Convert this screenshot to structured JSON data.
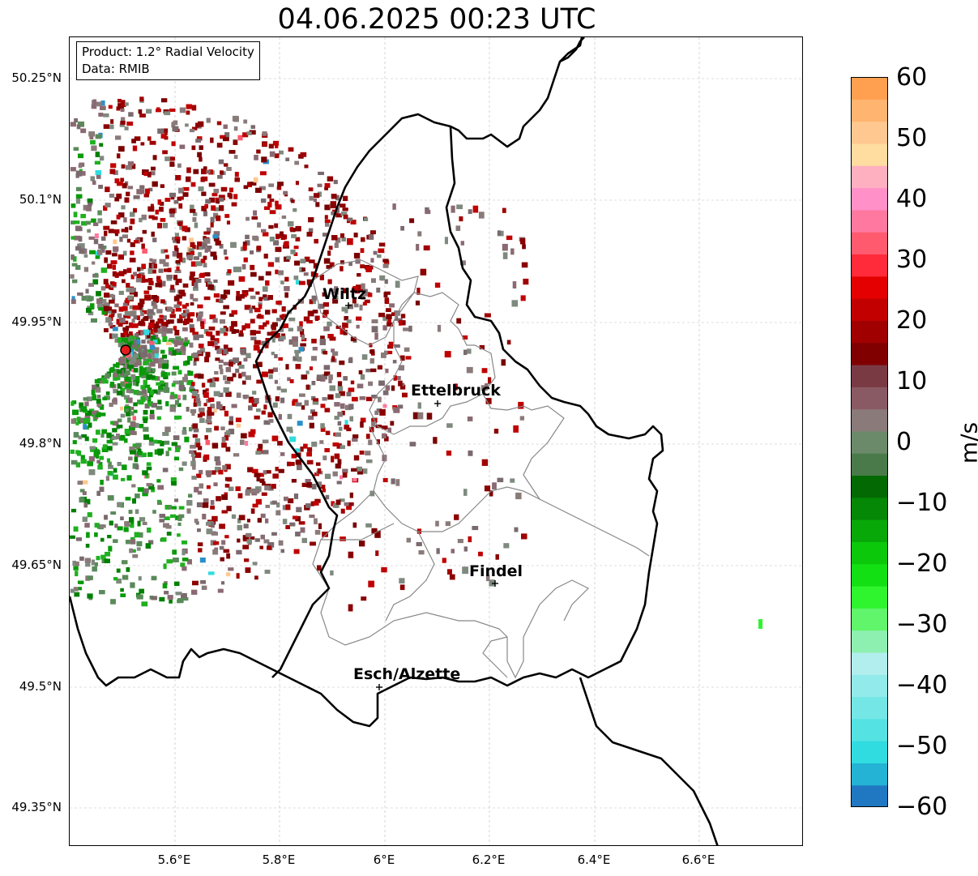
{
  "title": "04.06.2025 00:23 UTC",
  "info_box": {
    "product": "Product: 1.2° Radial Velocity",
    "data": "Data: RMIB"
  },
  "lat_ticks": [
    "50.25°N",
    "50.1°N",
    "49.95°N",
    "49.8°N",
    "49.65°N",
    "49.5°N",
    "49.35°N"
  ],
  "lon_ticks": [
    "5.6°E",
    "5.8°E",
    "6°E",
    "6.2°E",
    "6.4°E",
    "6.6°E"
  ],
  "cities": [
    {
      "name": "Wiltz"
    },
    {
      "name": "Ettelbruck"
    },
    {
      "name": "Findel"
    },
    {
      "name": "Esch/Alzette"
    }
  ],
  "colorbar": {
    "label": "m/s",
    "ticks": [
      "60",
      "50",
      "40",
      "30",
      "20",
      "10",
      "0",
      "−10",
      "−20",
      "−30",
      "−40",
      "−50",
      "−60"
    ],
    "colors": [
      "#1f78c1",
      "#24b3d4",
      "#30dcdf",
      "#54e2e2",
      "#74e6e6",
      "#93eaea",
      "#b3eeee",
      "#8ef0b0",
      "#60f56a",
      "#2ef52e",
      "#12e012",
      "#0bc80b",
      "#08a808",
      "#058805",
      "#036a03",
      "#4a7a4a",
      "#6a8a6a",
      "#8a7a7a",
      "#8a5a64",
      "#7a3a44",
      "#800000",
      "#a00000",
      "#c20000",
      "#e40000",
      "#ff2a3a",
      "#ff5a6e",
      "#ff78a0",
      "#ff90c8",
      "#ffb0c0",
      "#ffdca0",
      "#ffc890",
      "#ffb470",
      "#ffa050"
    ]
  },
  "radar_site": {
    "name": "radar-site"
  }
}
